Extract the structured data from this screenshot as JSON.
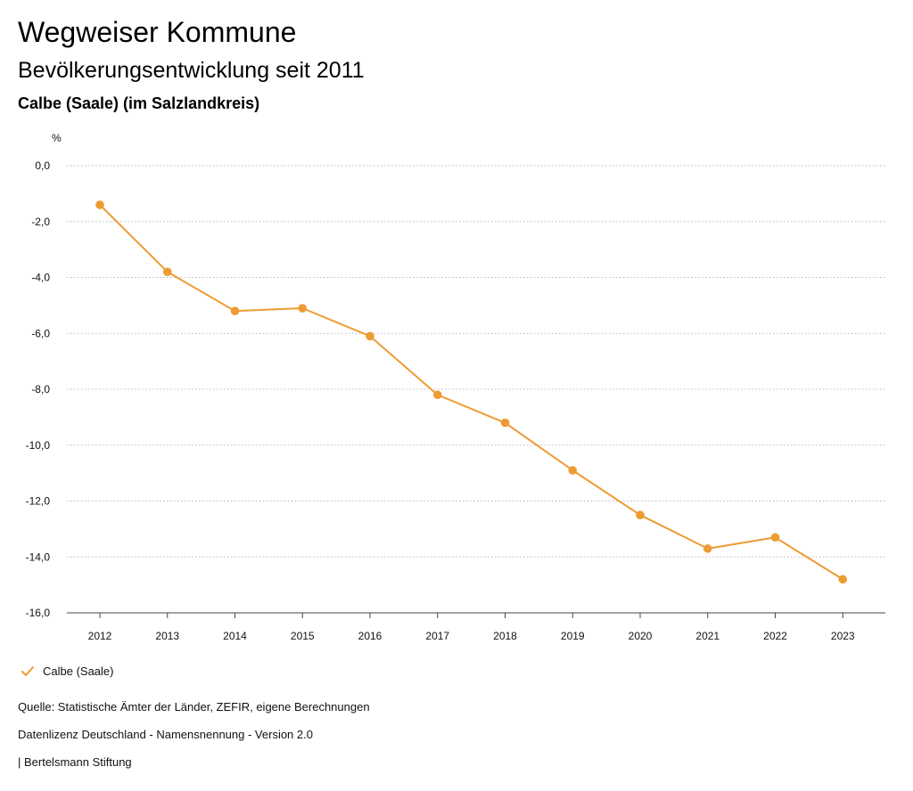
{
  "header": {
    "title": "Wegweiser Kommune",
    "subtitle": "Bevölkerungsentwicklung seit 2011",
    "region": "Calbe (Saale) (im Salzlandkreis)"
  },
  "chart_data": {
    "type": "line",
    "title": "Bevölkerungsentwicklung seit 2011",
    "subtitle": "Calbe (Saale) (im Salzlandkreis)",
    "xlabel": "",
    "ylabel": "%",
    "categories": [
      "2012",
      "2013",
      "2014",
      "2015",
      "2016",
      "2017",
      "2018",
      "2019",
      "2020",
      "2021",
      "2022",
      "2023"
    ],
    "series": [
      {
        "name": "Calbe (Saale)",
        "color": "#ed9b33",
        "values": [
          -1.4,
          -3.8,
          -5.2,
          -5.1,
          -6.1,
          -8.2,
          -9.2,
          -10.9,
          -12.5,
          -13.7,
          -13.3,
          -14.8
        ]
      }
    ],
    "ylim": [
      -16,
      0
    ],
    "yticks": [
      0,
      -2,
      -4,
      -6,
      -8,
      -10,
      -12,
      -14,
      -16
    ],
    "ytick_labels": [
      "0,0",
      "-2,0",
      "-4,0",
      "-6,0",
      "-8,0",
      "-10,0",
      "-12,0",
      "-14,0",
      "-16,0"
    ],
    "grid": true,
    "legend": "bottom-left"
  },
  "legend": {
    "label": "Calbe (Saale)",
    "icon": "check-icon"
  },
  "footer": {
    "source": "Quelle: Statistische Ämter der Länder, ZEFIR, eigene Berechnungen",
    "license": "Datenlizenz Deutschland - Namensnennung - Version 2.0",
    "publisher": "| Bertelsmann Stiftung"
  },
  "colors": {
    "series": "#ed9b33",
    "grid": "#b8b8b8",
    "text": "#111111"
  }
}
